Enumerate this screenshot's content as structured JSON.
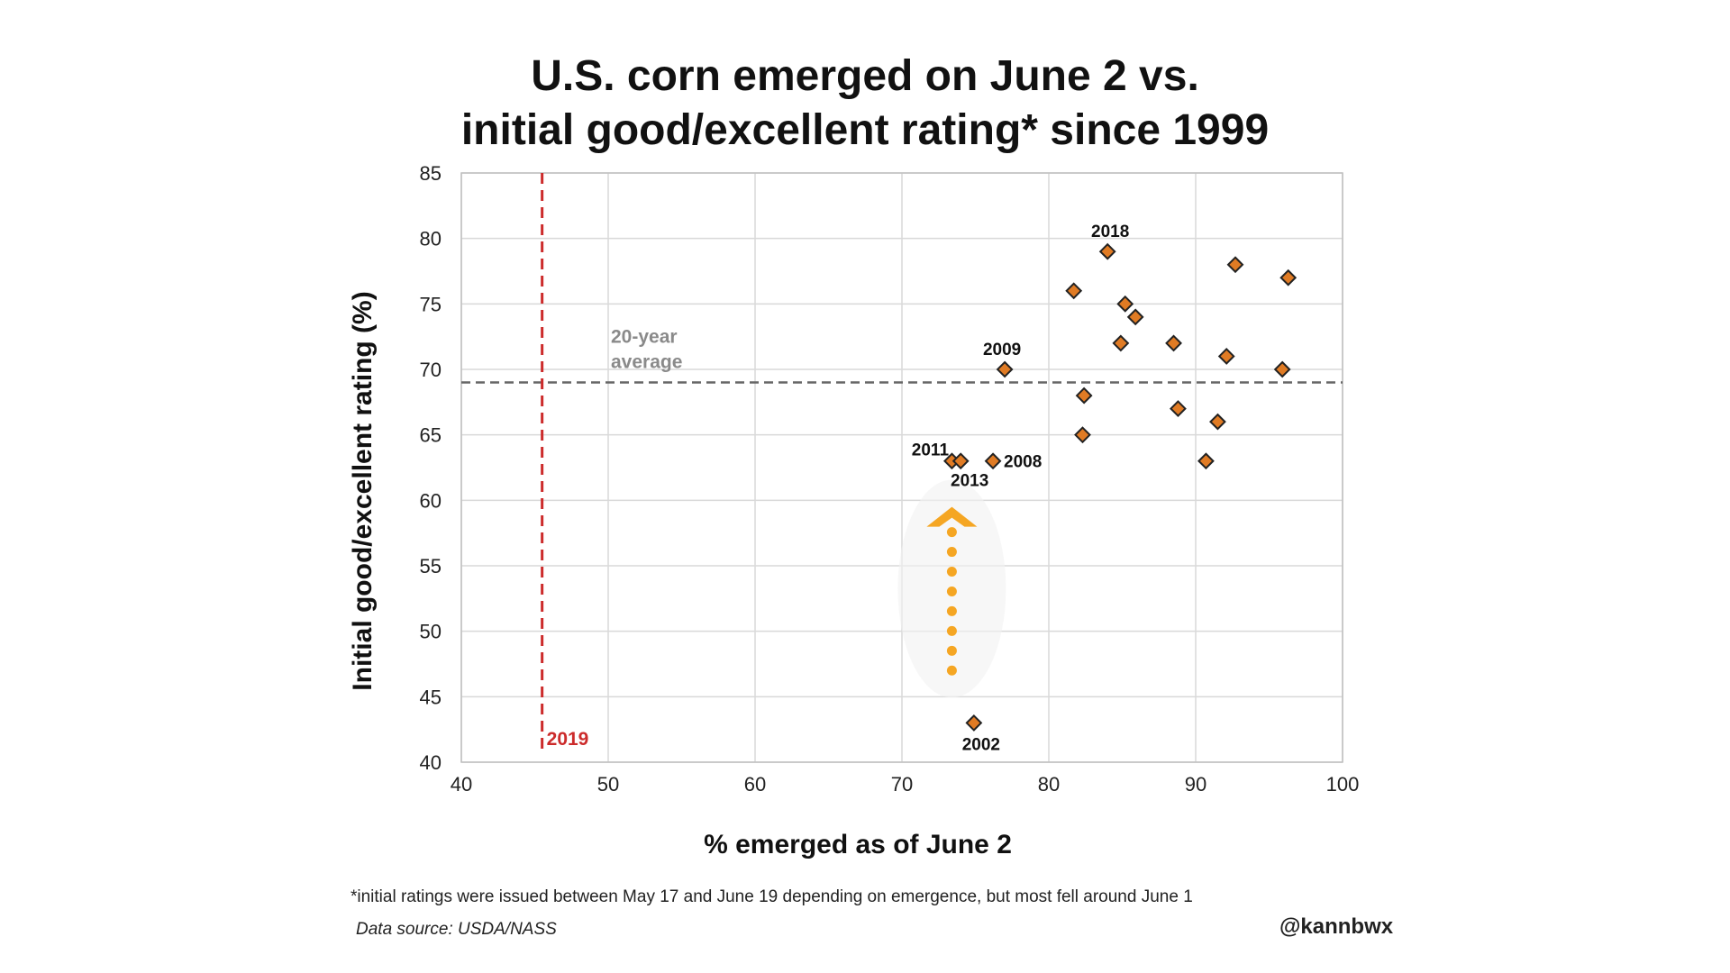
{
  "title_line1": "U.S. corn emerged on June 2 vs.",
  "title_line2": "initial good/excellent rating* since 1999",
  "footnote": "*initial ratings were issued between May 17 and June 19 depending on emergence, but most fell around June 1",
  "source": "Data source: USDA/NASS",
  "handle": "@kannbwx",
  "chart_data": {
    "type": "scatter",
    "xlabel": "% emerged as of June 2",
    "ylabel": "Initial good/excellent rating (%)",
    "xlim": [
      40,
      100
    ],
    "ylim": [
      40,
      85
    ],
    "xticks": [
      40,
      50,
      60,
      70,
      80,
      90,
      100
    ],
    "yticks": [
      40,
      45,
      50,
      55,
      60,
      65,
      70,
      75,
      80,
      85
    ],
    "grid": true,
    "points": [
      {
        "x": 84,
        "y": 79,
        "label": "2018"
      },
      {
        "x": 92.7,
        "y": 78,
        "label": ""
      },
      {
        "x": 96.3,
        "y": 77,
        "label": ""
      },
      {
        "x": 81.7,
        "y": 76,
        "label": ""
      },
      {
        "x": 85.2,
        "y": 75,
        "label": ""
      },
      {
        "x": 85.9,
        "y": 74,
        "label": ""
      },
      {
        "x": 84.9,
        "y": 72,
        "label": ""
      },
      {
        "x": 88.5,
        "y": 72,
        "label": ""
      },
      {
        "x": 92.1,
        "y": 71,
        "label": ""
      },
      {
        "x": 77,
        "y": 70,
        "label": "2009"
      },
      {
        "x": 95.9,
        "y": 70,
        "label": ""
      },
      {
        "x": 82.4,
        "y": 68,
        "label": ""
      },
      {
        "x": 88.8,
        "y": 67,
        "label": ""
      },
      {
        "x": 91.5,
        "y": 66,
        "label": ""
      },
      {
        "x": 82.3,
        "y": 65,
        "label": ""
      },
      {
        "x": 73.4,
        "y": 63,
        "label": "2011"
      },
      {
        "x": 74,
        "y": 63,
        "label": "2013"
      },
      {
        "x": 76.2,
        "y": 63,
        "label": "2008"
      },
      {
        "x": 90.7,
        "y": 63,
        "label": ""
      },
      {
        "x": 74.9,
        "y": 43,
        "label": "2002"
      }
    ],
    "reference_lines": {
      "horizontal": {
        "y": 69,
        "label_line1": "20-year",
        "label_line2": "average",
        "color": "#666666"
      },
      "vertical": {
        "x": 45.5,
        "label": "2019",
        "color": "#cc2b2b"
      }
    },
    "arrow": {
      "x": 73.4,
      "y_from": 47,
      "y_to": 59.5,
      "color": "#f5a623"
    },
    "marker_color": "#e07b24",
    "marker_edge": "#222222"
  }
}
